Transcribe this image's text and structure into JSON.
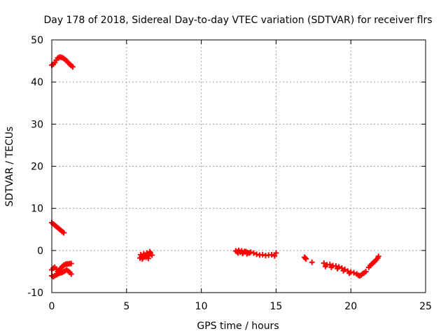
{
  "chart_data": {
    "type": "scatter",
    "title": "Day 178 of 2018, Sidereal Day-to-day VTEC variation (SDTVAR) for receiver flrs",
    "xlabel": "GPS time / hours",
    "ylabel": "SDTVAR / TECUs",
    "xlim": [
      0,
      25
    ],
    "ylim": [
      -10,
      50
    ],
    "xticks": [
      "0",
      "5",
      "10",
      "15",
      "20",
      "25"
    ],
    "yticks": [
      "-10",
      "0",
      "10",
      "20",
      "30",
      "40",
      "50"
    ],
    "grid": true,
    "marker": "plus",
    "color": "#ff0000",
    "series": [
      {
        "name": "flrs",
        "points": [
          [
            0.0,
            44.0
          ],
          [
            0.1,
            44.2
          ],
          [
            0.2,
            44.6
          ],
          [
            0.3,
            45.2
          ],
          [
            0.4,
            45.7
          ],
          [
            0.5,
            45.9
          ],
          [
            0.6,
            45.9
          ],
          [
            0.7,
            45.8
          ],
          [
            0.8,
            45.6
          ],
          [
            0.9,
            45.3
          ],
          [
            1.0,
            45.0
          ],
          [
            1.1,
            44.6
          ],
          [
            1.2,
            44.2
          ],
          [
            1.3,
            43.9
          ],
          [
            1.4,
            43.6
          ],
          [
            0.0,
            6.6
          ],
          [
            0.1,
            6.3
          ],
          [
            0.2,
            6.0
          ],
          [
            0.3,
            5.7
          ],
          [
            0.4,
            5.4
          ],
          [
            0.5,
            5.1
          ],
          [
            0.6,
            4.8
          ],
          [
            0.7,
            4.5
          ],
          [
            0.8,
            4.2
          ],
          [
            0.0,
            -4.6
          ],
          [
            0.1,
            -4.2
          ],
          [
            0.2,
            -4.0
          ],
          [
            0.3,
            -4.4
          ],
          [
            0.4,
            -5.0
          ],
          [
            0.5,
            -4.6
          ],
          [
            0.6,
            -4.2
          ],
          [
            0.7,
            -3.8
          ],
          [
            0.8,
            -3.5
          ],
          [
            0.9,
            -3.3
          ],
          [
            1.0,
            -3.2
          ],
          [
            1.1,
            -3.2
          ],
          [
            1.2,
            -3.1
          ],
          [
            1.3,
            -3.1
          ],
          [
            0.0,
            -6.0
          ],
          [
            0.1,
            -6.2
          ],
          [
            0.2,
            -6.0
          ],
          [
            0.3,
            -5.8
          ],
          [
            0.4,
            -5.6
          ],
          [
            0.5,
            -5.4
          ],
          [
            0.6,
            -5.3
          ],
          [
            0.7,
            -5.2
          ],
          [
            0.8,
            -5.0
          ],
          [
            0.9,
            -4.8
          ],
          [
            1.0,
            -4.6
          ],
          [
            1.1,
            -4.9
          ],
          [
            1.2,
            -5.2
          ],
          [
            1.3,
            -5.6
          ],
          [
            5.9,
            -1.8
          ],
          [
            6.0,
            -1.5
          ],
          [
            6.1,
            -1.7
          ],
          [
            6.2,
            -1.2
          ],
          [
            6.3,
            -1.6
          ],
          [
            6.4,
            -1.0
          ],
          [
            6.5,
            -1.3
          ],
          [
            6.6,
            -0.6
          ],
          [
            6.7,
            -1.1
          ],
          [
            5.95,
            -1.0
          ],
          [
            6.15,
            -0.8
          ],
          [
            6.35,
            -0.6
          ],
          [
            6.55,
            -0.3
          ],
          [
            6.05,
            -2.0
          ],
          [
            6.45,
            -1.9
          ],
          [
            12.3,
            -0.1
          ],
          [
            12.4,
            -0.3
          ],
          [
            12.5,
            0.0
          ],
          [
            12.6,
            -0.4
          ],
          [
            12.7,
            -0.1
          ],
          [
            12.8,
            -0.5
          ],
          [
            12.9,
            -0.2
          ],
          [
            13.0,
            -0.3
          ],
          [
            13.1,
            -0.5
          ],
          [
            13.2,
            -0.6
          ],
          [
            13.3,
            -0.4
          ],
          [
            12.45,
            -0.6
          ],
          [
            12.75,
            -0.7
          ],
          [
            13.05,
            -0.8
          ],
          [
            13.5,
            -0.6
          ],
          [
            13.7,
            -0.9
          ],
          [
            13.9,
            -1.1
          ],
          [
            14.1,
            -1.0
          ],
          [
            14.3,
            -1.2
          ],
          [
            14.5,
            -1.1
          ],
          [
            14.7,
            -1.0
          ],
          [
            14.9,
            -1.3
          ],
          [
            15.0,
            -0.6
          ],
          [
            16.9,
            -1.6
          ],
          [
            17.0,
            -2.0
          ],
          [
            16.95,
            -1.8
          ],
          [
            17.4,
            -2.8
          ],
          [
            18.2,
            -3.0
          ],
          [
            18.4,
            -3.4
          ],
          [
            18.6,
            -3.3
          ],
          [
            18.8,
            -3.6
          ],
          [
            19.0,
            -3.7
          ],
          [
            19.2,
            -3.9
          ],
          [
            19.4,
            -4.2
          ],
          [
            19.6,
            -4.5
          ],
          [
            19.8,
            -4.9
          ],
          [
            20.0,
            -5.1
          ],
          [
            20.2,
            -5.3
          ],
          [
            18.3,
            -3.8
          ],
          [
            18.7,
            -4.0
          ],
          [
            19.1,
            -4.3
          ],
          [
            19.5,
            -4.8
          ],
          [
            19.9,
            -5.4
          ],
          [
            20.4,
            -5.6
          ],
          [
            20.5,
            -5.9
          ],
          [
            20.6,
            -6.0
          ],
          [
            20.7,
            -5.8
          ],
          [
            20.8,
            -5.5
          ],
          [
            20.9,
            -5.3
          ],
          [
            21.0,
            -5.0
          ],
          [
            21.2,
            -4.0
          ],
          [
            21.3,
            -3.6
          ],
          [
            21.4,
            -3.2
          ],
          [
            21.5,
            -2.9
          ],
          [
            21.6,
            -2.6
          ],
          [
            21.7,
            -2.2
          ],
          [
            21.8,
            -1.8
          ],
          [
            21.85,
            -1.4
          ]
        ]
      }
    ]
  }
}
